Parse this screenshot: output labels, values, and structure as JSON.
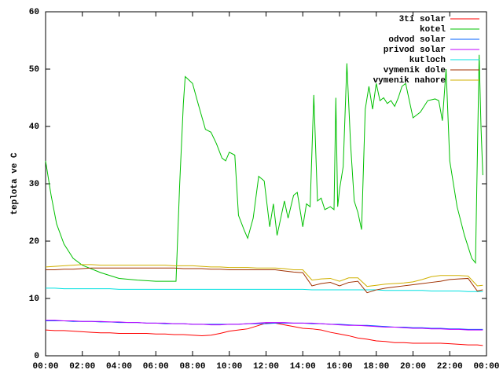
{
  "chart_data": {
    "type": "line",
    "y_label": "teplota ve C",
    "x": [
      0,
      0.5,
      1,
      1.5,
      2,
      2.5,
      3,
      3.5,
      4,
      4.5,
      5,
      5.5,
      6,
      6.5,
      7,
      7.5,
      8,
      8.5,
      9,
      9.5,
      10,
      10.5,
      11,
      11.5,
      12,
      12.5,
      13,
      13.5,
      14,
      14.5,
      15,
      15.5,
      16,
      16.5,
      17,
      17.5,
      18,
      18.5,
      19,
      19.5,
      20,
      20.5,
      21,
      21.5,
      22,
      22.5,
      23,
      23.5,
      23.8
    ],
    "series": [
      {
        "name": "3ti solar",
        "color": "#ff0000",
        "values": [
          4.5,
          4.4,
          4.4,
          4.3,
          4.2,
          4.1,
          4.0,
          4.0,
          3.9,
          3.9,
          3.9,
          3.9,
          3.8,
          3.8,
          3.7,
          3.7,
          3.6,
          3.5,
          3.6,
          3.9,
          4.3,
          4.5,
          4.7,
          5.2,
          5.7,
          5.7,
          5.4,
          5.1,
          4.8,
          4.7,
          4.5,
          4.1,
          3.8,
          3.5,
          3.1,
          2.9,
          2.6,
          2.5,
          2.3,
          2.3,
          2.2,
          2.2,
          2.2,
          2.2,
          2.1,
          2.0,
          1.9,
          1.9,
          1.8
        ]
      },
      {
        "name": "kotel",
        "color": "#00c000",
        "x": [
          0,
          0.3,
          0.6,
          1,
          1.5,
          2,
          3,
          4,
          5,
          6,
          7,
          7.1,
          7.3,
          7.5,
          7.6,
          8,
          8.3,
          8.7,
          9,
          9.3,
          9.6,
          9.8,
          10,
          10.3,
          10.5,
          10.8,
          11,
          11.3,
          11.6,
          11.9,
          12.2,
          12.4,
          12.6,
          12.8,
          13,
          13.2,
          13.5,
          13.7,
          14,
          14.2,
          14.4,
          14.6,
          14.8,
          15,
          15.2,
          15.5,
          15.7,
          15.8,
          15.9,
          16,
          16.2,
          16.4,
          16.6,
          16.8,
          17,
          17.2,
          17.4,
          17.6,
          17.8,
          18,
          18.2,
          18.4,
          18.6,
          18.8,
          19,
          19.2,
          19.4,
          19.6,
          20,
          20.4,
          20.8,
          21.2,
          21.4,
          21.6,
          21.8,
          22,
          22.4,
          22.8,
          23.2,
          23.4,
          23.6,
          23.7,
          23.8
        ],
        "values": [
          34,
          28,
          23,
          19.5,
          17,
          15.8,
          14.5,
          13.5,
          13.2,
          13.0,
          13.0,
          13.0,
          30,
          44,
          48.7,
          47.5,
          44,
          39.5,
          39,
          37,
          34.5,
          34,
          35.5,
          35,
          24.5,
          22,
          20.5,
          24,
          31.3,
          30.5,
          22.5,
          26.5,
          21,
          24,
          27,
          24,
          28,
          28.5,
          22.5,
          26.5,
          26,
          45.5,
          27,
          27.5,
          25.5,
          26,
          25.5,
          45,
          26,
          29,
          33,
          51,
          37,
          27,
          25,
          22,
          43,
          47,
          43,
          47.5,
          44.5,
          45,
          44,
          44.5,
          43.5,
          45,
          47,
          47.5,
          41.5,
          42.5,
          44.5,
          44.8,
          44.5,
          41,
          50,
          34,
          26,
          21,
          17,
          16.2,
          52.5,
          40,
          31.5
        ]
      },
      {
        "name": "odvod solar",
        "color": "#0060ff",
        "values": [
          6.1,
          6.1,
          6.1,
          6.0,
          6.0,
          6.0,
          5.9,
          5.9,
          5.8,
          5.8,
          5.8,
          5.7,
          5.7,
          5.6,
          5.6,
          5.6,
          5.5,
          5.5,
          5.5,
          5.5,
          5.5,
          5.5,
          5.6,
          5.6,
          5.6,
          5.7,
          5.7,
          5.7,
          5.7,
          5.6,
          5.6,
          5.5,
          5.5,
          5.4,
          5.3,
          5.3,
          5.2,
          5.1,
          5.0,
          5.0,
          4.9,
          4.9,
          4.8,
          4.8,
          4.7,
          4.7,
          4.6,
          4.6,
          4.6
        ]
      },
      {
        "name": "privod solar",
        "color": "#c000ff",
        "values": [
          6.2,
          6.2,
          6.1,
          6.1,
          6.0,
          6.0,
          6.0,
          5.9,
          5.9,
          5.8,
          5.8,
          5.7,
          5.7,
          5.7,
          5.6,
          5.6,
          5.5,
          5.5,
          5.4,
          5.4,
          5.5,
          5.5,
          5.6,
          5.7,
          5.8,
          5.8,
          5.8,
          5.7,
          5.7,
          5.7,
          5.6,
          5.5,
          5.4,
          5.3,
          5.3,
          5.2,
          5.1,
          5.0,
          5.0,
          4.9,
          4.8,
          4.8,
          4.7,
          4.7,
          4.6,
          4.6,
          4.5,
          4.5,
          4.5
        ]
      },
      {
        "name": "kutloch",
        "color": "#00e0e0",
        "values": [
          11.8,
          11.8,
          11.7,
          11.7,
          11.7,
          11.7,
          11.7,
          11.7,
          11.6,
          11.6,
          11.6,
          11.6,
          11.6,
          11.6,
          11.6,
          11.6,
          11.6,
          11.6,
          11.6,
          11.6,
          11.6,
          11.6,
          11.6,
          11.6,
          11.6,
          11.6,
          11.6,
          11.6,
          11.6,
          11.5,
          11.5,
          11.5,
          11.5,
          11.5,
          11.5,
          11.5,
          11.5,
          11.4,
          11.4,
          11.4,
          11.4,
          11.4,
          11.3,
          11.3,
          11.3,
          11.3,
          11.2,
          11.2,
          11.2
        ]
      },
      {
        "name": "vymenik dole",
        "color": "#a03000",
        "values": [
          15.0,
          15.0,
          15.1,
          15.1,
          15.2,
          15.3,
          15.3,
          15.3,
          15.3,
          15.3,
          15.3,
          15.3,
          15.3,
          15.3,
          15.3,
          15.2,
          15.2,
          15.2,
          15.1,
          15.1,
          15.0,
          15.0,
          15.0,
          15.0,
          15.0,
          15.0,
          14.8,
          14.6,
          14.5,
          12.2,
          12.6,
          12.8,
          12.2,
          12.8,
          13.0,
          11.0,
          11.5,
          11.8,
          12.0,
          12.2,
          12.4,
          12.6,
          12.8,
          13.0,
          13.3,
          13.4,
          13.5,
          11.3,
          11.5
        ]
      },
      {
        "name": "vymenik nahore",
        "color": "#d0b000",
        "values": [
          15.5,
          15.6,
          15.7,
          15.8,
          15.9,
          15.9,
          15.8,
          15.8,
          15.8,
          15.8,
          15.8,
          15.8,
          15.8,
          15.8,
          15.7,
          15.7,
          15.7,
          15.6,
          15.5,
          15.5,
          15.4,
          15.4,
          15.4,
          15.3,
          15.3,
          15.3,
          15.2,
          15.0,
          15.0,
          13.2,
          13.4,
          13.5,
          13.0,
          13.6,
          13.6,
          12.1,
          12.3,
          12.5,
          12.6,
          12.7,
          12.9,
          13.3,
          13.8,
          14.0,
          14.0,
          14.0,
          13.9,
          12.2,
          12.3
        ]
      }
    ],
    "xlim": [
      0,
      24
    ],
    "xticks": [
      {
        "value": 0,
        "label": "00:00"
      },
      {
        "value": 2,
        "label": "02:00"
      },
      {
        "value": 4,
        "label": "04:00"
      },
      {
        "value": 6,
        "label": "06:00"
      },
      {
        "value": 8,
        "label": "08:00"
      },
      {
        "value": 10,
        "label": "10:00"
      },
      {
        "value": 12,
        "label": "12:00"
      },
      {
        "value": 14,
        "label": "14:00"
      },
      {
        "value": 16,
        "label": "16:00"
      },
      {
        "value": 18,
        "label": "18:00"
      },
      {
        "value": 20,
        "label": "20:00"
      },
      {
        "value": 22,
        "label": "22:00"
      },
      {
        "value": 24,
        "label": "00:00"
      }
    ],
    "ylim": [
      0,
      60
    ],
    "yticks": [
      0,
      10,
      20,
      30,
      40,
      50,
      60
    ],
    "grid": false,
    "legend": "top-right"
  }
}
